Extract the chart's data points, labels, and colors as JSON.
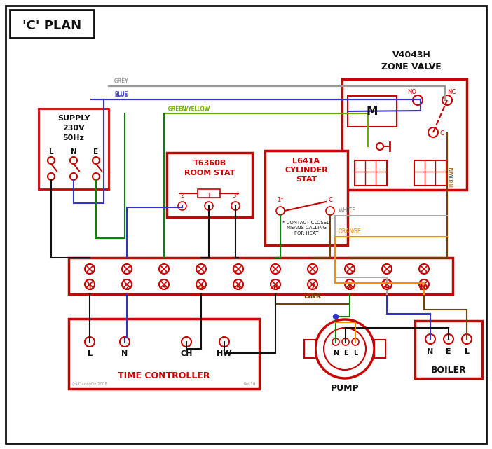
{
  "title": "'C' PLAN",
  "red": "#cc0000",
  "wire_blue": "#3333cc",
  "wire_green": "#008800",
  "wire_brown": "#7B3F00",
  "wire_black": "#111111",
  "wire_orange": "#FF8C00",
  "wire_grey": "#999999",
  "wire_green_yellow": "#6aaa00",
  "grey": "#888888",
  "black": "#111111",
  "time_ctrl_label": "TIME CONTROLLER",
  "pump_label": "PUMP",
  "boiler_label": "BOILER",
  "link_label": "LINK"
}
